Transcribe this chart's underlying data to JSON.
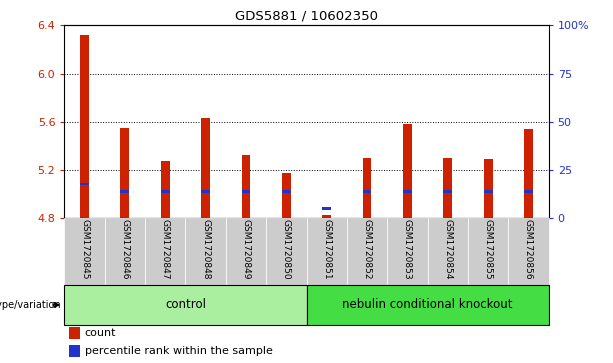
{
  "title": "GDS5881 / 10602350",
  "samples": [
    "GSM1720845",
    "GSM1720846",
    "GSM1720847",
    "GSM1720848",
    "GSM1720849",
    "GSM1720850",
    "GSM1720851",
    "GSM1720852",
    "GSM1720853",
    "GSM1720854",
    "GSM1720855",
    "GSM1720856"
  ],
  "red_values": [
    6.32,
    5.55,
    5.27,
    5.63,
    5.32,
    5.17,
    4.82,
    5.3,
    5.58,
    5.3,
    5.29,
    5.54
  ],
  "blue_values": [
    5.08,
    5.02,
    5.02,
    5.02,
    5.02,
    5.02,
    4.88,
    5.02,
    5.02,
    5.02,
    5.02,
    5.02
  ],
  "baseline": 4.8,
  "ylim_left": [
    4.8,
    6.4
  ],
  "ylim_right": [
    0,
    100
  ],
  "yticks_left": [
    4.8,
    5.2,
    5.6,
    6.0,
    6.4
  ],
  "yticks_right": [
    0,
    25,
    50,
    75,
    100
  ],
  "ytick_labels_right": [
    "0",
    "25",
    "50",
    "75",
    "100%"
  ],
  "grid_values": [
    6.0,
    5.6,
    5.2
  ],
  "ctrl_n": 6,
  "ko_n": 6,
  "control_label": "control",
  "knockout_label": "nebulin conditional knockout",
  "genotype_label": "genotype/variation",
  "red_color": "#CC2200",
  "blue_color": "#2233CC",
  "control_bg": "#AAEEA0",
  "knockout_bg": "#44DD44",
  "col_bg_even": "#CCCCCC",
  "col_bg_odd": "#BBBBBB",
  "legend_count": "count",
  "legend_percentile": "percentile rank within the sample",
  "bar_width": 0.22
}
